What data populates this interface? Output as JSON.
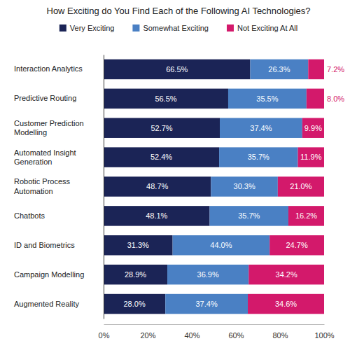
{
  "chart_data": {
    "type": "bar",
    "orientation": "horizontal",
    "stacked": true,
    "data_labels": true,
    "grid": false,
    "legend": "top",
    "title": "How Exciting do You Find Each of the Following AI Technologies?",
    "categories": [
      "Interaction Analytics",
      "Predictive Routing",
      "Customer Prediction Modelling",
      "Automated Insight Generation",
      "Robotic Process Automation",
      "Chatbots",
      "ID and Biometrics",
      "Campaign Modelling",
      "Augmented Reality"
    ],
    "series": [
      {
        "name": "Very Exciting",
        "color": "#1b2456",
        "values": [
          66.5,
          56.5,
          52.7,
          52.4,
          48.7,
          48.1,
          31.3,
          28.9,
          28.0
        ],
        "value_labels": [
          "66.5%",
          "56.5%",
          "52.7%",
          "52.4%",
          "48.7%",
          "48.1%",
          "31.3%",
          "28.9%",
          "28.0%"
        ]
      },
      {
        "name": "Somewhat Exciting",
        "color": "#4a80c4",
        "values": [
          26.3,
          35.5,
          37.4,
          35.7,
          30.3,
          35.7,
          44.0,
          36.9,
          37.4
        ],
        "value_labels": [
          "26.3%",
          "35.5%",
          "37.4%",
          "35.7%",
          "30.3%",
          "35.7%",
          "44.0%",
          "36.9%",
          "37.4%"
        ]
      },
      {
        "name": "Not Exciting At All",
        "color": "#d3196b",
        "values": [
          7.2,
          8.0,
          9.9,
          11.9,
          21.0,
          16.2,
          24.7,
          34.2,
          34.6
        ],
        "value_labels": [
          "7.2%",
          "8.0%",
          "9.9%",
          "11.9%",
          "21.0%",
          "16.2%",
          "24.7%",
          "34.2%",
          "34.6%"
        ]
      }
    ],
    "xlim": [
      0,
      100
    ],
    "xticks": [
      {
        "value": 0,
        "label": "0%"
      },
      {
        "value": 20,
        "label": "20%"
      },
      {
        "value": 40,
        "label": "40%"
      },
      {
        "value": 60,
        "label": "60%"
      },
      {
        "value": 80,
        "label": "80%"
      },
      {
        "value": 100,
        "label": "100%"
      }
    ]
  }
}
